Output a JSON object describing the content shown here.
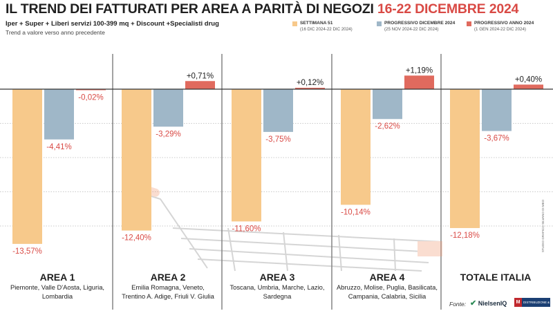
{
  "header": {
    "title_main": "IL TREND DEI FATTURATI PER AREA A PARITÀ DI NEGOZI",
    "title_highlight": "16-22 DICEMBRE 2024",
    "subtitle": "Iper + Super + Liberi servizi 100-399 mq + Discount +Specialisti drug",
    "note": "Trend a valore verso anno precedente"
  },
  "legend": [
    {
      "name": "SETTIMANA 51",
      "period": "(16 DIC 2024-22 DIC 2024)",
      "color": "#f7c98b"
    },
    {
      "name": "PROGRESSIVO DICEMBRE 2024",
      "period": "(25 NOV 2024-22 DIC 2024)",
      "color": "#9fb7c8"
    },
    {
      "name": "PROGRESSIVO ANNO 2024",
      "period": "(1 GEN 2024-22 DIC 2024)",
      "color": "#e06a5e"
    }
  ],
  "colors": {
    "negative_label": "#d94a45",
    "positive_label": "#1f1f1f",
    "divider": "#444444",
    "baseline": "#333333"
  },
  "chart_data": {
    "type": "bar",
    "categories": [
      "AREA 1",
      "AREA 2",
      "AREA 3",
      "AREA 4",
      "TOTALE ITALIA"
    ],
    "regions": [
      "Piemonte, Valle D'Aosta, Liguria, Lombardia",
      "Emilia Romagna, Veneto, Trentino A. Adige, Friuli V. Giulia",
      "Toscana, Umbria, Marche, Lazio, Sardegna",
      "Abruzzo, Molise, Puglia, Basilicata, Campania, Calabria, Sicilia",
      ""
    ],
    "regions_lines": [
      [
        "Piemonte, Valle D'Aosta, Liguria,",
        "Lombardia"
      ],
      [
        "Emilia Romagna, Veneto,",
        "Trentino A. Adige, Friuli V. Giulia"
      ],
      [
        "Toscana, Umbria, Marche, Lazio,",
        "Sardegna"
      ],
      [
        "Abruzzo, Molise, Puglia, Basilicata,",
        "Campania, Calabria, Sicilia"
      ],
      []
    ],
    "series": [
      {
        "name": "SETTIMANA 51",
        "values": [
          -13.57,
          -12.4,
          -11.6,
          -10.14,
          -12.18
        ]
      },
      {
        "name": "PROGRESSIVO DICEMBRE 2024",
        "values": [
          -4.41,
          -3.29,
          -3.75,
          -2.62,
          -3.67
        ]
      },
      {
        "name": "PROGRESSIVO ANNO 2024",
        "values": [
          -0.02,
          0.71,
          0.12,
          1.19,
          0.4
        ]
      }
    ],
    "value_labels": [
      [
        "-13,57%",
        "-12,40%",
        "-11,60%",
        "-10,14%",
        "-12,18%"
      ],
      [
        "-4,41%",
        "-3,29%",
        "-3,75%",
        "-2,62%",
        "-3,67%"
      ],
      [
        "-0,02%",
        "+0,71%",
        "+0,12%",
        "+1,19%",
        "+0,40%"
      ]
    ],
    "ylim": [
      -14,
      1.5
    ],
    "grid": true,
    "legend_position": "top-right"
  },
  "source": {
    "label": "Fonte:",
    "brand1": "NielsenIQ",
    "brand2_mark": "M",
    "brand2_word": "DISTRIBUZIONE & CONSUMI"
  },
  "credit": "STUDIO GRAFICO SILVANO DI MEO"
}
